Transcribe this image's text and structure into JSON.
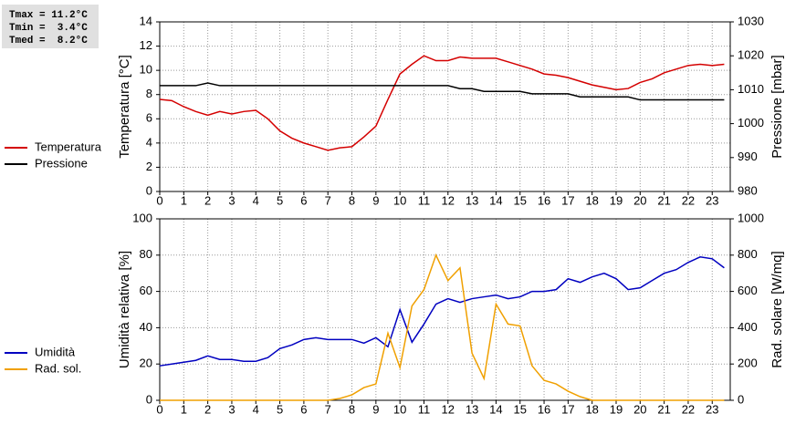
{
  "stats": [
    "Tmax = 11.2°C",
    "Tmin =  3.4°C",
    "Tmed =  8.2°C"
  ],
  "chart_data": [
    {
      "type": "line",
      "ylabel": "Temperatura [°C]",
      "y2label": "Pressione [mbar]",
      "x": [
        0,
        0.5,
        1,
        1.5,
        2,
        2.5,
        3,
        3.5,
        4,
        4.5,
        5,
        5.5,
        6,
        6.5,
        7,
        7.5,
        8,
        8.5,
        9,
        9.5,
        10,
        10.5,
        11,
        11.5,
        12,
        12.5,
        13,
        13.5,
        14,
        14.5,
        15,
        15.5,
        16,
        16.5,
        17,
        17.5,
        18,
        18.5,
        19,
        19.5,
        20,
        20.5,
        21,
        21.5,
        22,
        22.5,
        23,
        23.5
      ],
      "xlim": [
        0,
        23.75
      ],
      "xticks": [
        0,
        1,
        2,
        3,
        4,
        5,
        6,
        7,
        8,
        9,
        10,
        11,
        12,
        13,
        14,
        15,
        16,
        17,
        18,
        19,
        20,
        21,
        22,
        23
      ],
      "ylim": [
        0,
        14
      ],
      "yticks": [
        0,
        2,
        4,
        6,
        8,
        10,
        12,
        14
      ],
      "y2lim": [
        980,
        1030
      ],
      "y2ticks": [
        980,
        990,
        1000,
        1010,
        1020,
        1030
      ],
      "grid": true,
      "series": [
        {
          "name": "Temperatura",
          "color": "#d40000",
          "values": [
            7.6,
            7.5,
            7.0,
            6.6,
            6.3,
            6.6,
            6.4,
            6.6,
            6.7,
            6.0,
            5.0,
            4.4,
            4.0,
            3.7,
            3.4,
            3.6,
            3.7,
            4.5,
            5.4,
            7.6,
            9.7,
            10.5,
            11.2,
            10.8,
            10.8,
            11.1,
            11.0,
            11.0,
            11.0,
            10.7,
            10.4,
            10.1,
            9.7,
            9.6,
            9.4,
            9.1,
            8.8,
            8.6,
            8.4,
            8.5,
            9.0,
            9.3,
            9.8,
            10.1,
            10.4,
            10.5,
            10.4,
            10.5
          ]
        },
        {
          "name": "Pressione",
          "color": "#000000",
          "axis": "y2",
          "values": [
            1011.2,
            1011.2,
            1011.2,
            1011.2,
            1012,
            1011.2,
            1011.2,
            1011.2,
            1011.2,
            1011.2,
            1011.2,
            1011.2,
            1011.2,
            1011.2,
            1011.2,
            1011.2,
            1011.2,
            1011.2,
            1011.2,
            1011.2,
            1011.2,
            1011.2,
            1011.2,
            1011.2,
            1011.2,
            1010.3,
            1010.3,
            1009.5,
            1009.5,
            1009.5,
            1009.5,
            1008.8,
            1008.8,
            1008.8,
            1008.8,
            1007.9,
            1007.9,
            1007.9,
            1007.9,
            1007.9,
            1007,
            1007,
            1007,
            1007,
            1007,
            1007,
            1007,
            1007
          ]
        }
      ]
    },
    {
      "type": "line",
      "ylabel": "Umidità relativa [%]",
      "y2label": "Rad. solare [W/mq]",
      "x": [
        0,
        0.5,
        1,
        1.5,
        2,
        2.5,
        3,
        3.5,
        4,
        4.5,
        5,
        5.5,
        6,
        6.5,
        7,
        7.5,
        8,
        8.5,
        9,
        9.5,
        10,
        10.5,
        11,
        11.5,
        12,
        12.5,
        13,
        13.5,
        14,
        14.5,
        15,
        15.5,
        16,
        16.5,
        17,
        17.5,
        18,
        18.5,
        19,
        19.5,
        20,
        20.5,
        21,
        21.5,
        22,
        22.5,
        23,
        23.5
      ],
      "xlim": [
        0,
        23.75
      ],
      "xticks": [
        0,
        1,
        2,
        3,
        4,
        5,
        6,
        7,
        8,
        9,
        10,
        11,
        12,
        13,
        14,
        15,
        16,
        17,
        18,
        19,
        20,
        21,
        22,
        23
      ],
      "ylim": [
        0,
        100
      ],
      "yticks": [
        0,
        20,
        40,
        60,
        80,
        100
      ],
      "y2lim": [
        0,
        1000
      ],
      "y2ticks": [
        0,
        200,
        400,
        600,
        800,
        1000
      ],
      "grid": true,
      "series": [
        {
          "name": "Umidità",
          "color": "#0000c0",
          "values": [
            19,
            20,
            21,
            22,
            24.5,
            22.5,
            22.5,
            21.5,
            21.5,
            23.5,
            28.5,
            30.5,
            33.5,
            34.5,
            33.5,
            33.5,
            33.5,
            31.5,
            34.5,
            29.5,
            50,
            32,
            42,
            53,
            56,
            54,
            56,
            57,
            58,
            56,
            57,
            60,
            60,
            61,
            67,
            65,
            68,
            70,
            67,
            61,
            62,
            66,
            70,
            72,
            76,
            79,
            78,
            73
          ]
        },
        {
          "name": "Rad. sol.",
          "color": "#f0a000",
          "axis": "y2",
          "values": [
            0,
            0,
            0,
            0,
            0,
            0,
            0,
            0,
            0,
            0,
            0,
            0,
            0,
            0,
            0,
            10,
            30,
            70,
            90,
            370,
            180,
            520,
            610,
            800,
            660,
            730,
            260,
            120,
            530,
            420,
            410,
            190,
            110,
            90,
            50,
            20,
            0,
            0,
            0,
            0,
            0,
            0,
            0,
            0,
            0,
            0,
            0,
            0
          ]
        }
      ]
    }
  ]
}
